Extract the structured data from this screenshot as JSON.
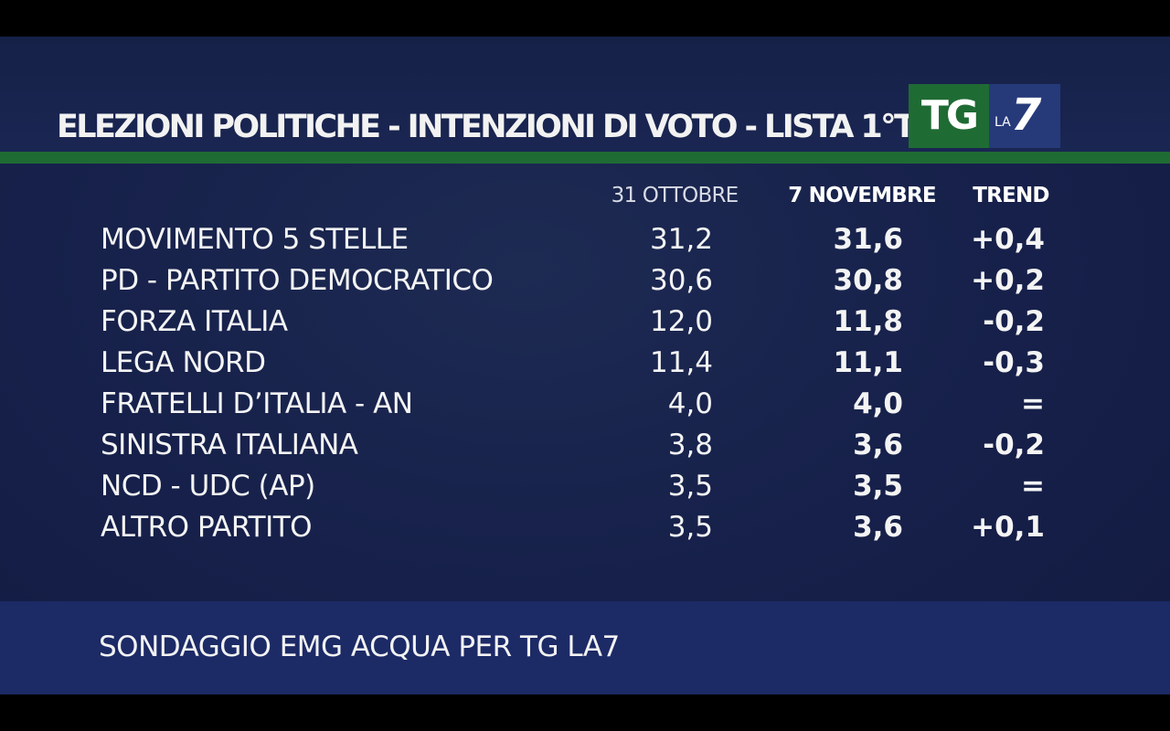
{
  "header": {
    "title": "ELEZIONI POLITICHE - INTENZIONI DI VOTO - LISTA 1°TURNO",
    "logo": {
      "tg": "TG",
      "la": "LA",
      "seven": "7"
    }
  },
  "columns": {
    "date1": "31 OTTOBRE",
    "date2": "7 NOVEMBRE",
    "trend": "TREND"
  },
  "rows": [
    {
      "party": "MOVIMENTO 5 STELLE",
      "oct": "31,2",
      "nov": "31,6",
      "trend": "+0,4"
    },
    {
      "party": "PD - PARTITO DEMOCRATICO",
      "oct": "30,6",
      "nov": "30,8",
      "trend": "+0,2"
    },
    {
      "party": "FORZA ITALIA",
      "oct": "12,0",
      "nov": "11,8",
      "trend": "-0,2"
    },
    {
      "party": "LEGA NORD",
      "oct": "11,4",
      "nov": "11,1",
      "trend": "-0,3"
    },
    {
      "party": "FRATELLI D’ITALIA - AN",
      "oct": "4,0",
      "nov": "4,0",
      "trend": "="
    },
    {
      "party": "SINISTRA ITALIANA",
      "oct": "3,8",
      "nov": "3,6",
      "trend": "-0,2"
    },
    {
      "party": "NCD - UDC (AP)",
      "oct": "3,5",
      "nov": "3,5",
      "trend": "="
    },
    {
      "party": "ALTRO PARTITO",
      "oct": "3,5",
      "nov": "3,6",
      "trend": "+0,1"
    }
  ],
  "footer": {
    "source": "SONDAGGIO EMG ACQUA PER TG LA7"
  },
  "colors": {
    "background": "#16204a",
    "footer": "#1c2a66",
    "accent_green": "#1f6b34",
    "logo_blue": "#263a7a",
    "text": "#f4f4f4"
  }
}
